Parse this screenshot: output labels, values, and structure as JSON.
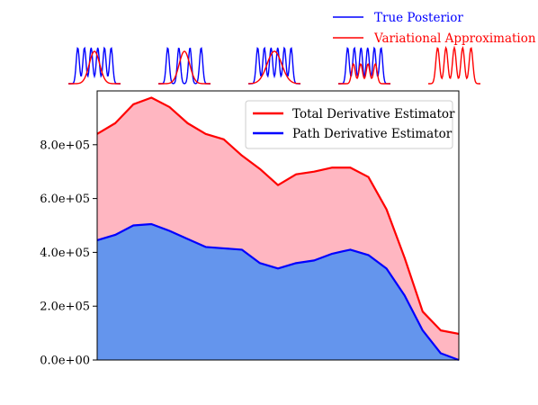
{
  "figure_legend": {
    "items": [
      {
        "label": "True Posterior",
        "color": "#0000ff"
      },
      {
        "label": "Variational Approximation",
        "color": "#ff0000"
      }
    ]
  },
  "chart_data": {
    "type": "area",
    "ylim": [
      0,
      1000000
    ],
    "xlim": [
      0,
      100
    ],
    "yticks": [
      {
        "value": 0,
        "label": "0.0e+00"
      },
      {
        "value": 200000,
        "label": "2.0e+05"
      },
      {
        "value": 400000,
        "label": "4.0e+05"
      },
      {
        "value": 600000,
        "label": "6.0e+05"
      },
      {
        "value": 800000,
        "label": "8.0e+05"
      }
    ],
    "grid": false,
    "legend_position": "top-right",
    "colors": {
      "total_fill": "#ffb6c1",
      "path_fill": "#6495ed",
      "total_line": "#ff0000",
      "path_line": "#0000ff"
    },
    "x": [
      0,
      5,
      10,
      15,
      20,
      25,
      30,
      35,
      40,
      45,
      50,
      55,
      60,
      65,
      70,
      75,
      80,
      85,
      90,
      95,
      100
    ],
    "series": [
      {
        "name": "Total Derivative Estimator",
        "color": "#ff0000",
        "values": [
          840000,
          880000,
          950000,
          975000,
          940000,
          880000,
          840000,
          820000,
          760000,
          710000,
          650000,
          690000,
          700000,
          715000,
          715000,
          680000,
          560000,
          380000,
          180000,
          110000,
          97000
        ]
      },
      {
        "name": "Path Derivative Estimator",
        "color": "#0000ff",
        "values": [
          445000,
          465000,
          500000,
          505000,
          480000,
          450000,
          420000,
          415000,
          410000,
          360000,
          340000,
          360000,
          370000,
          395000,
          410000,
          390000,
          340000,
          240000,
          110000,
          25000,
          0
        ]
      }
    ]
  },
  "inset_panels": [
    {
      "name": "posterior-panel-1",
      "true_peaks": 6,
      "approx_peaks": 1
    },
    {
      "name": "posterior-panel-2",
      "true_peaks": 4,
      "approx_peaks": 1
    },
    {
      "name": "posterior-panel-3",
      "true_peaks": 6,
      "approx_peaks": 1
    },
    {
      "name": "posterior-panel-4",
      "true_peaks": 6,
      "approx_peaks": 4
    },
    {
      "name": "posterior-panel-5",
      "true_peaks": 5,
      "approx_peaks": 5
    }
  ]
}
